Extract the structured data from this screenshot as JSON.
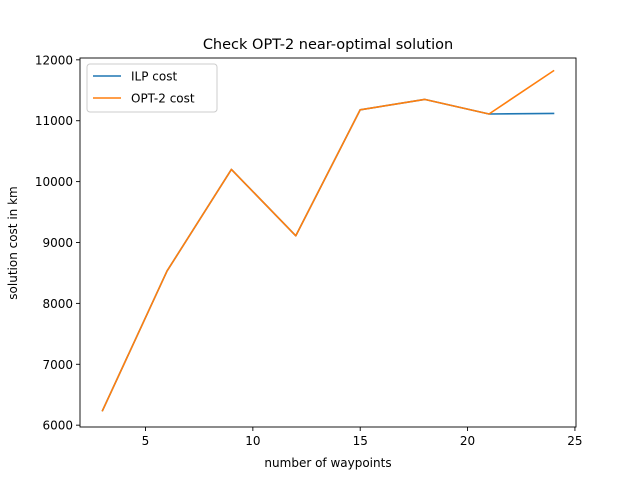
{
  "chart_data": {
    "type": "line",
    "title": "Check OPT-2 near-optimal solution",
    "xlabel": "number of waypoints",
    "ylabel": "solution cost in km",
    "xlim": [
      1.95,
      25.05
    ],
    "ylim": [
      5970,
      12030
    ],
    "xticks": [
      5,
      10,
      15,
      20,
      25
    ],
    "yticks": [
      6000,
      7000,
      8000,
      9000,
      10000,
      11000,
      12000
    ],
    "grid": false,
    "legend_position": "top-left",
    "x": [
      3,
      6,
      9,
      12,
      15,
      18,
      21,
      24
    ],
    "series": [
      {
        "name": "ILP cost",
        "color": "#1f77b4",
        "values": [
          6240,
          8530,
          10200,
          9110,
          11180,
          11350,
          11110,
          11120
        ]
      },
      {
        "name": "OPT-2 cost",
        "color": "#ff7f0e",
        "values": [
          6240,
          8530,
          10200,
          9110,
          11180,
          11350,
          11110,
          11820
        ]
      }
    ]
  }
}
